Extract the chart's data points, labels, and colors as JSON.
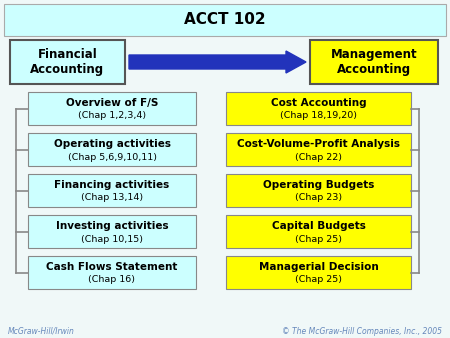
{
  "title": "ACCT 102",
  "title_bg": "#ccffff",
  "bg_color": "#f0f8f8",
  "left_header": {
    "text": "Financial\nAccounting",
    "bg": "#ccffff",
    "border": "#555555"
  },
  "right_header": {
    "text": "Management\nAccounting",
    "bg": "#ffff00",
    "border": "#555555"
  },
  "left_boxes": [
    {
      "line1": "Overview of F/S",
      "line2": "(Chap 1,2,3,4)"
    },
    {
      "line1": "Operating activities",
      "line2": "(Chap 5,6,9,10,11)"
    },
    {
      "line1": "Financing activities",
      "line2": "(Chap 13,14)"
    },
    {
      "line1": "Investing activities",
      "line2": "(Chap 10,15)"
    },
    {
      "line1": "Cash Flows Statement",
      "line2": "(Chap 16)"
    }
  ],
  "right_boxes": [
    {
      "line1": "Cost Accounting",
      "line2": "(Chap 18,19,20)"
    },
    {
      "line1": "Cost-Volume-Profit Analysis",
      "line2": "(Chap 22)"
    },
    {
      "line1": "Operating Budgets",
      "line2": "(Chap 23)"
    },
    {
      "line1": "Capital Budgets",
      "line2": "(Chap 25)"
    },
    {
      "line1": "Managerial Decision",
      "line2": "(Chap 25)"
    }
  ],
  "left_box_bg": "#ccffff",
  "right_box_bg": "#ffff00",
  "box_border": "#888888",
  "arrow_color": "#2233bb",
  "footer_left": "McGraw-Hill/Irwin",
  "footer_right": "© The McGraw-Hill Companies, Inc., 2005",
  "footer_color": "#6688bb"
}
